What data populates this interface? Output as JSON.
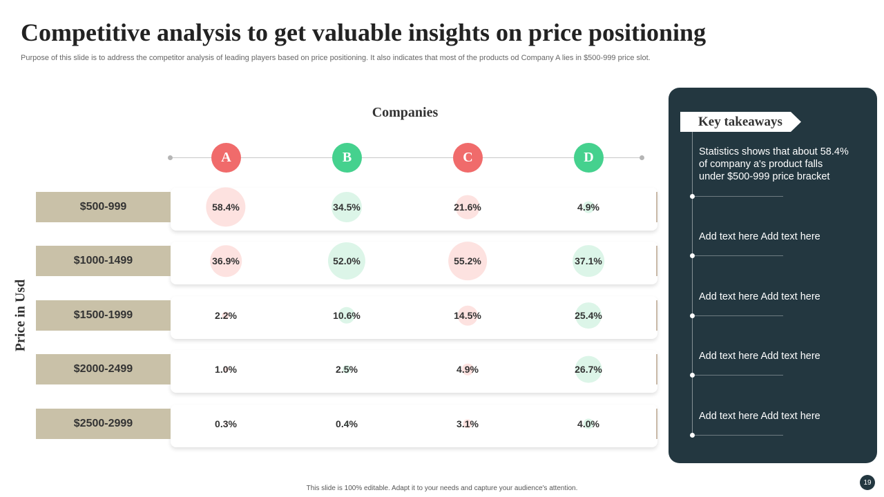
{
  "title": "Competitive analysis to get valuable insights on price positioning",
  "subtitle": "Purpose of this slide is to address the competitor analysis of leading players based on  price positioning. It also indicates that most of the products od Company A lies in $500-999 price slot.",
  "colors": {
    "red": "#f06b6b",
    "green": "#45d18e",
    "red_light": "#fde2e0",
    "green_light": "#dcf5e8",
    "price_band": "#c9c1a8",
    "panel": "#233740"
  },
  "chart_data": {
    "type": "table",
    "title": "Companies",
    "xlabel": "Companies",
    "ylabel": "Price in Usd",
    "columns": [
      {
        "name": "A",
        "color": "red"
      },
      {
        "name": "B",
        "color": "green"
      },
      {
        "name": "C",
        "color": "red"
      },
      {
        "name": "D",
        "color": "green"
      }
    ],
    "rows": [
      {
        "price": "$500-999",
        "values": [
          58.4,
          34.5,
          21.6,
          4.9
        ],
        "labels": [
          "58.4%",
          "34.5%",
          "21.6%",
          "4.9%"
        ]
      },
      {
        "price": "$1000-1499",
        "values": [
          36.9,
          52.0,
          55.2,
          37.1
        ],
        "labels": [
          "36.9%",
          "52.0%",
          "55.2%",
          "37.1%"
        ]
      },
      {
        "price": "$1500-1999",
        "values": [
          2.2,
          10.6,
          14.5,
          25.4
        ],
        "labels": [
          "2.2%",
          "10.6%",
          "14.5%",
          "25.4%"
        ]
      },
      {
        "price": "$2000-2499",
        "values": [
          1.0,
          2.5,
          4.9,
          26.7
        ],
        "labels": [
          "1.0%",
          "2.5%",
          "4.9%",
          "26.7%"
        ]
      },
      {
        "price": "$2500-2999",
        "values": [
          0.3,
          0.4,
          3.1,
          4.0
        ],
        "labels": [
          "0.3%",
          "0.4%",
          "3.1%",
          "4.0%"
        ]
      }
    ]
  },
  "key_takeaways": {
    "heading": "Key takeaways",
    "items": [
      "Statistics shows that about 58.4% of company a's product falls under $500-999 price bracket",
      "Add text here Add text here",
      "Add text here Add text here",
      "Add text here Add text here",
      "Add text here Add text here"
    ]
  },
  "footer": "This slide is 100% editable.  Adapt it to your needs and capture your audience's attention.",
  "page_number": "19"
}
